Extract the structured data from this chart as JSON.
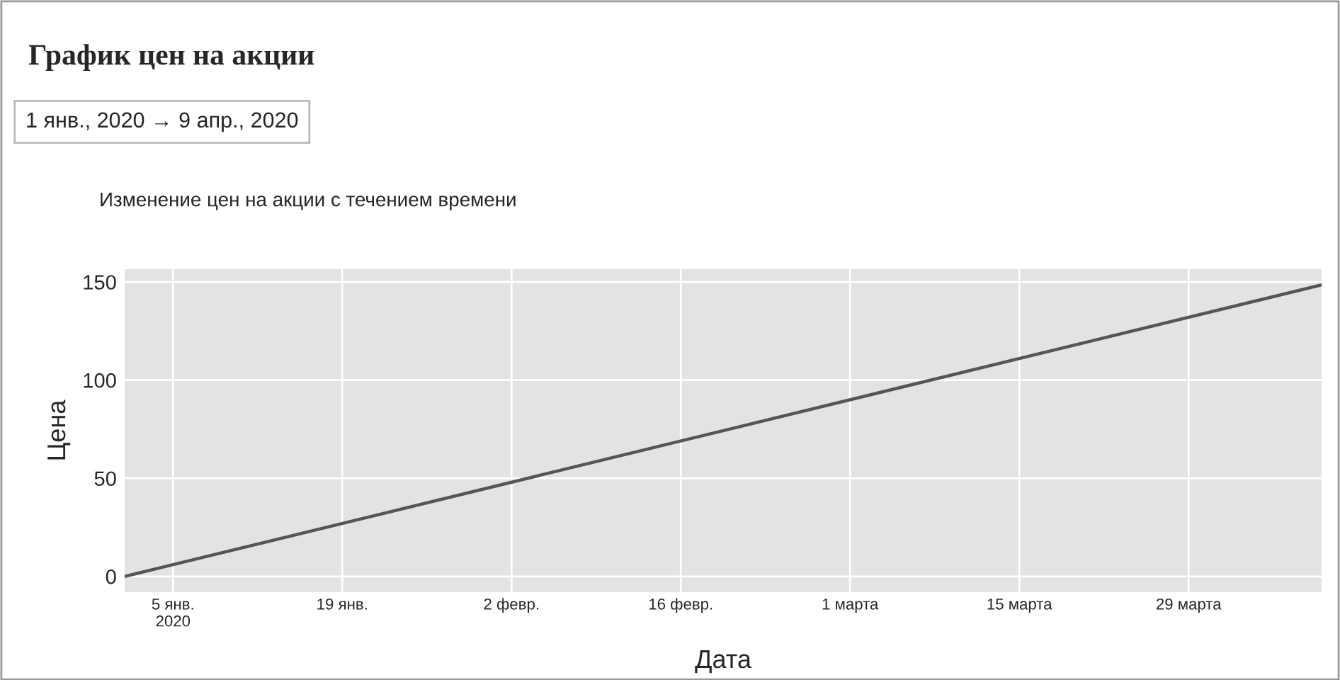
{
  "chart_data": {
    "type": "line",
    "title": "График цен на акции",
    "subtitle": "Изменение цен на акции с течением времени",
    "annotations": [
      "1 янв., 2020 → 9 апр., 2020"
    ],
    "xlabel": "Дата",
    "ylabel": "Цена",
    "x": [
      "2020-01-01",
      "2020-04-09"
    ],
    "series": [
      {
        "color": "#555555",
        "values": [
          0,
          148.5
        ]
      }
    ],
    "xlim": [
      "2020-01-01",
      "2020-04-09"
    ],
    "xticks": [
      {
        "value": "2020-01-05",
        "label": "5 янв.\n2020"
      },
      {
        "value": "2020-01-19",
        "label": "19 янв."
      },
      {
        "value": "2020-02-02",
        "label": "2 февр."
      },
      {
        "value": "2020-02-16",
        "label": "16 февр."
      },
      {
        "value": "2020-03-01",
        "label": "1 марта"
      },
      {
        "value": "2020-03-15",
        "label": "15 марта"
      },
      {
        "value": "2020-03-29",
        "label": "29 марта"
      }
    ],
    "ylim": [
      -8,
      156.5
    ],
    "yticks": [
      0,
      50,
      100,
      150
    ],
    "grid": true,
    "marker": "none",
    "line_style": "solid"
  }
}
